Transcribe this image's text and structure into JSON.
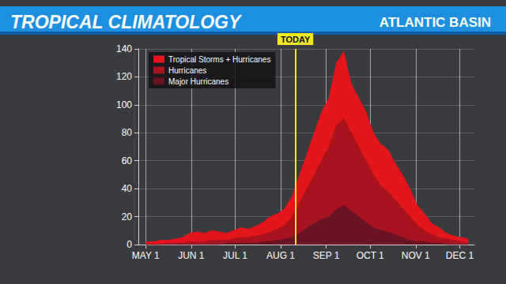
{
  "chart_data": {
    "type": "area",
    "title": "TROPICAL CLIMATOLOGY",
    "subtitle": "ATLANTIC BASIN",
    "annotation": {
      "x": 223,
      "label": "TODAY"
    },
    "x": [
      121,
      126,
      131,
      136,
      141,
      146,
      151,
      156,
      161,
      166,
      171,
      176,
      181,
      186,
      191,
      196,
      201,
      206,
      211,
      216,
      221,
      226,
      231,
      236,
      241,
      246,
      251,
      256,
      261,
      266,
      271,
      276,
      281,
      286,
      291,
      296,
      301,
      306,
      311,
      316,
      321,
      326,
      331,
      336,
      341
    ],
    "series": [
      {
        "name": "Tropical Storms + Hurricanes",
        "color": "#e3141b",
        "values": [
          2,
          2,
          3,
          3,
          4,
          5,
          8,
          9,
          8,
          10,
          9,
          8,
          10,
          12,
          11,
          13,
          16,
          20,
          22,
          26,
          35,
          50,
          65,
          80,
          95,
          105,
          130,
          138,
          115,
          105,
          95,
          80,
          72,
          68,
          58,
          50,
          40,
          28,
          22,
          15,
          12,
          8,
          6,
          5,
          4
        ]
      },
      {
        "name": "Hurricanes",
        "color": "#a8141d",
        "values": [
          0,
          0,
          0,
          1,
          1,
          1,
          2,
          2,
          2,
          3,
          3,
          3,
          4,
          5,
          5,
          6,
          7,
          9,
          11,
          14,
          20,
          30,
          40,
          50,
          60,
          70,
          85,
          90,
          80,
          70,
          60,
          50,
          42,
          38,
          32,
          26,
          20,
          14,
          10,
          7,
          5,
          4,
          3,
          2,
          1
        ]
      },
      {
        "name": "Major Hurricanes",
        "color": "#6a1422",
        "values": [
          0,
          0,
          0,
          0,
          0,
          0,
          0,
          0,
          0,
          0,
          0,
          1,
          1,
          1,
          1,
          1,
          2,
          2,
          3,
          4,
          5,
          8,
          12,
          15,
          18,
          20,
          25,
          28,
          24,
          20,
          16,
          12,
          10,
          9,
          7,
          5,
          3,
          2,
          2,
          1,
          1,
          0,
          0,
          0,
          0
        ]
      }
    ],
    "xlim": [
      116,
      345
    ],
    "xticks": [
      {
        "value": 121,
        "label": "MAY 1"
      },
      {
        "value": 152,
        "label": "JUN 1"
      },
      {
        "value": 182,
        "label": "JUL 1"
      },
      {
        "value": 213,
        "label": "AUG 1"
      },
      {
        "value": 244,
        "label": "SEP 1"
      },
      {
        "value": 274,
        "label": "OCT 1"
      },
      {
        "value": 305,
        "label": "NOV 1"
      },
      {
        "value": 335,
        "label": "DEC 1"
      }
    ],
    "ylim": [
      0,
      140
    ],
    "yticks": [
      0,
      20,
      40,
      60,
      80,
      100,
      120,
      140
    ],
    "grid": true,
    "legend": "upper left",
    "stacked": false
  }
}
